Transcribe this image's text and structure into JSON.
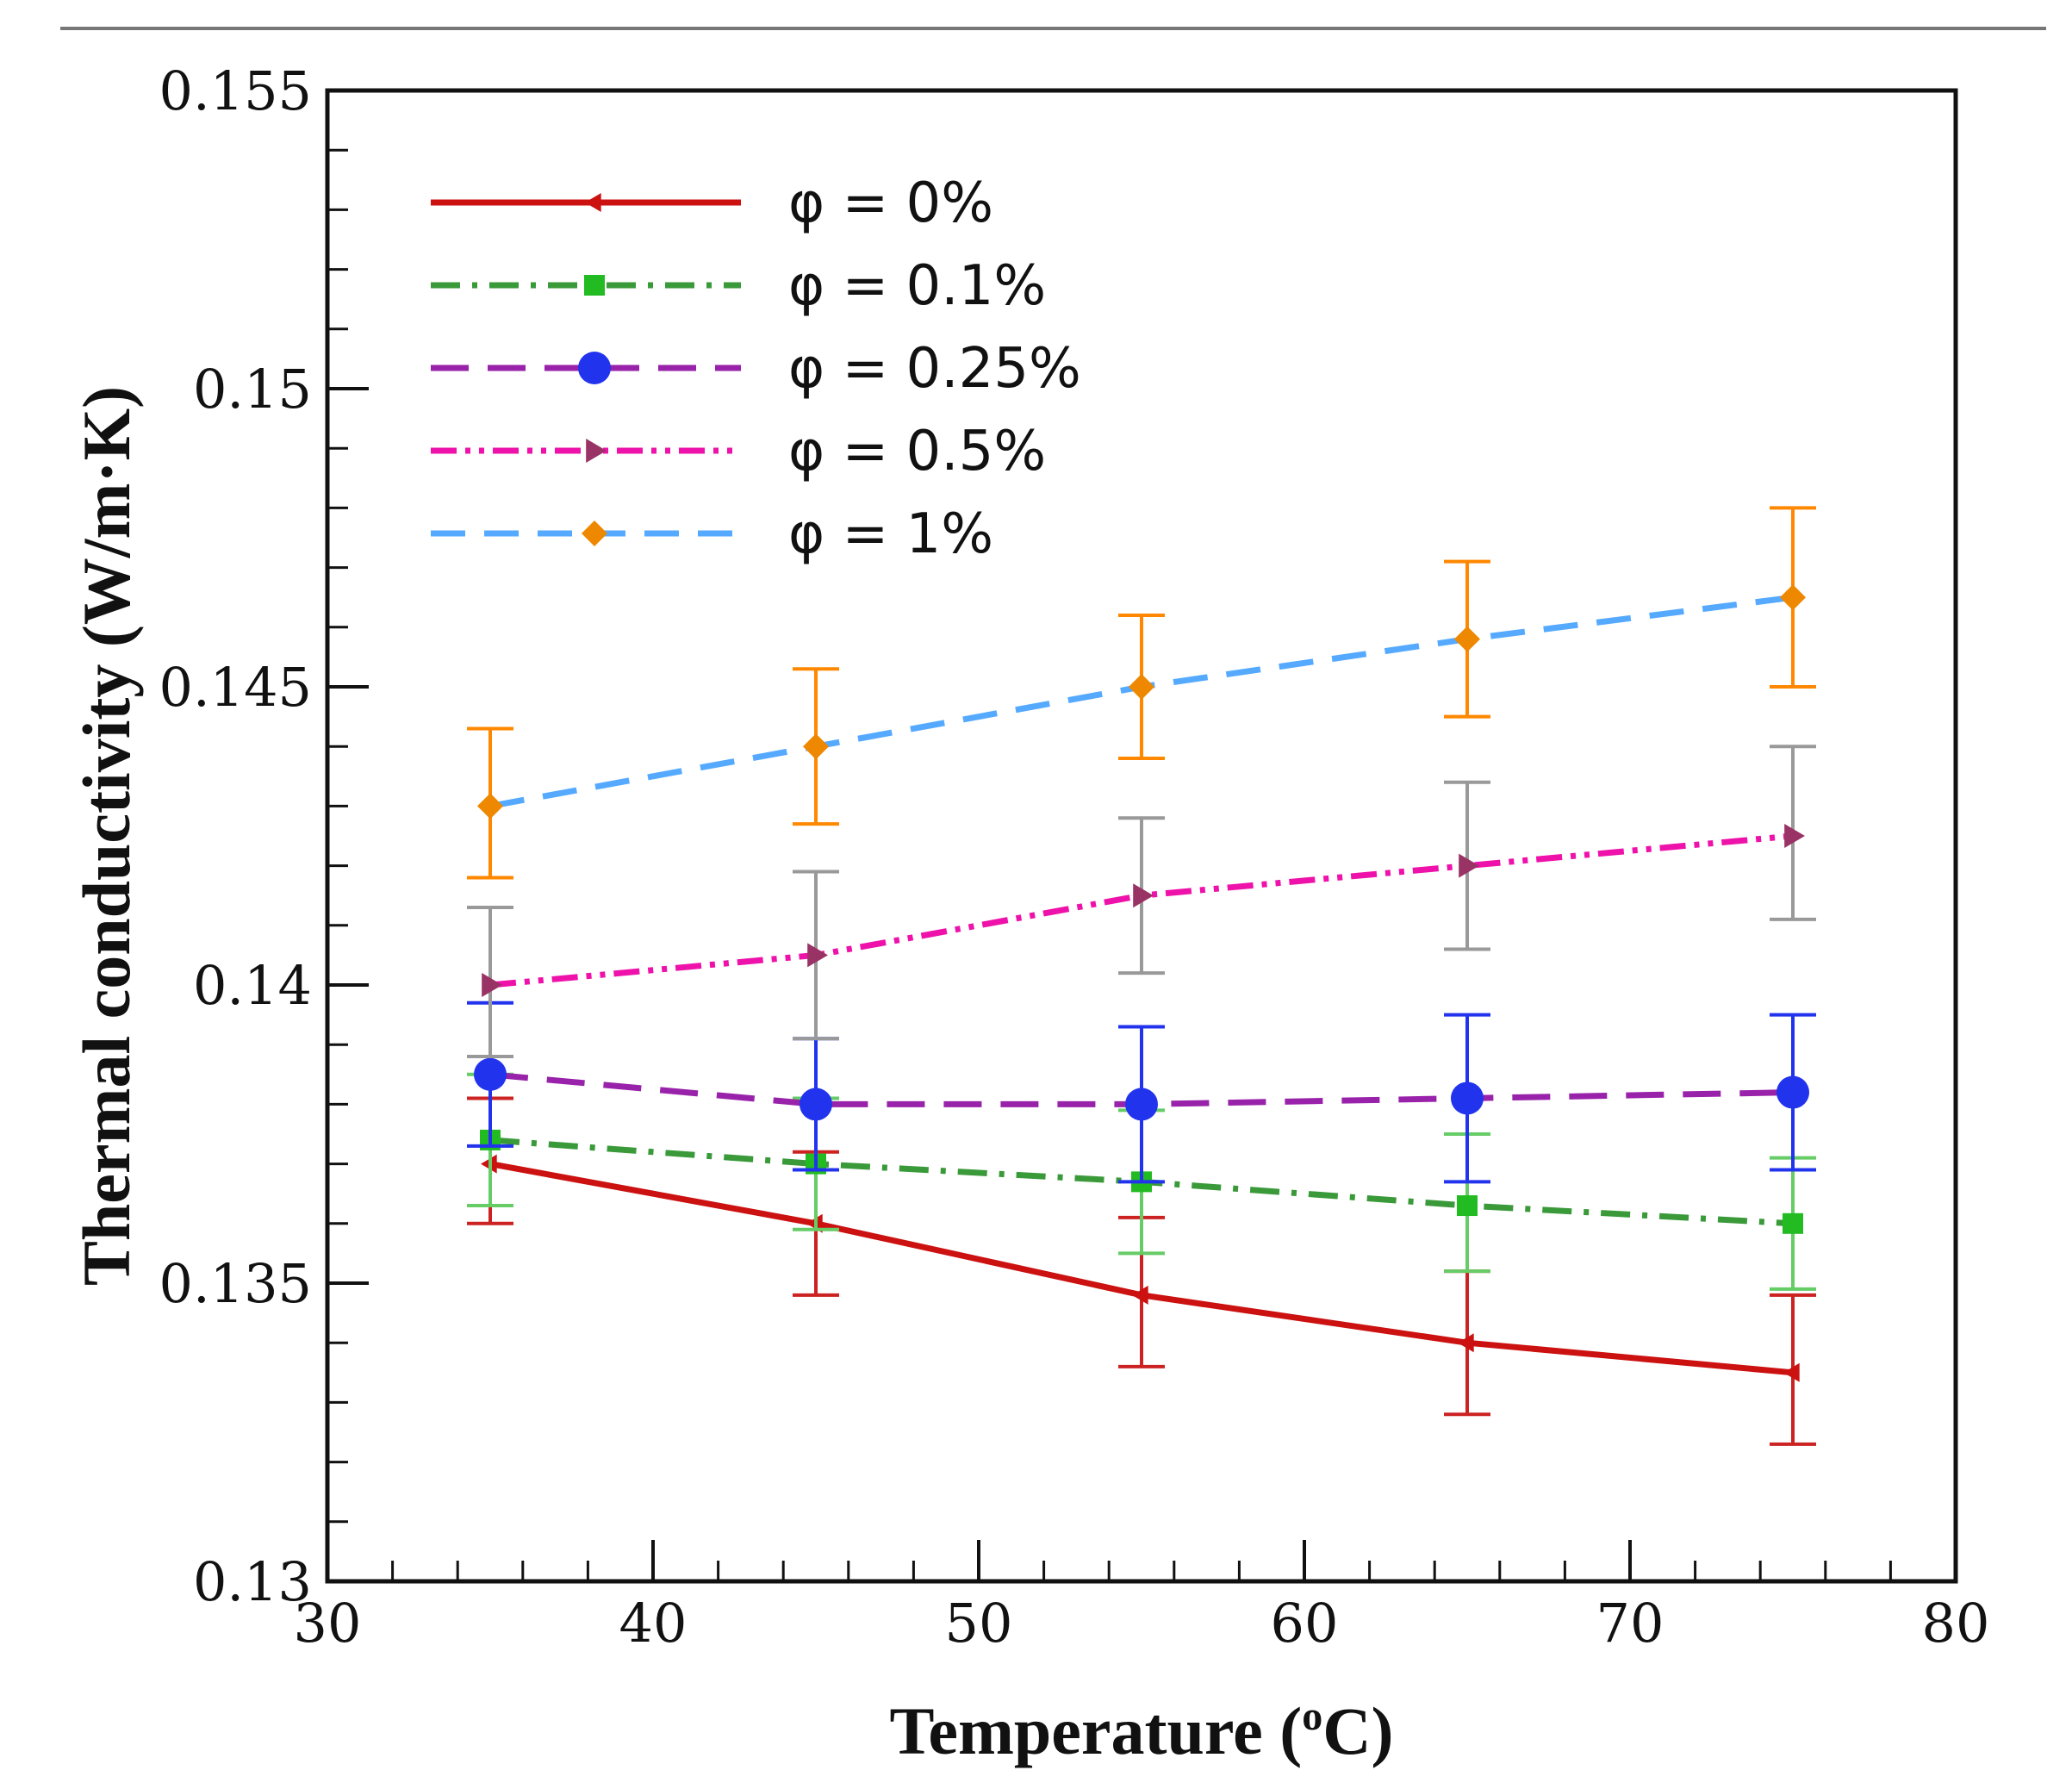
{
  "chart_data": {
    "type": "line",
    "title": "",
    "xlabel": "Temperature (",
    "xlabel_unit_sup": "o",
    "xlabel_unit_end": "C)",
    "ylabel": "Thermal conductivity (W/m·K)",
    "xlim": [
      30,
      80
    ],
    "ylim": [
      0.13,
      0.155
    ],
    "xticks": [
      30,
      40,
      50,
      60,
      70,
      80
    ],
    "xtick_labels": [
      "30",
      "40",
      "50",
      "60",
      "70",
      "80"
    ],
    "yticks": [
      0.13,
      0.135,
      0.14,
      0.145,
      0.15,
      0.155
    ],
    "ytick_labels": [
      "0.13",
      "0.135",
      "0.14",
      "0.145",
      "0.15",
      "0.155"
    ],
    "grid": false,
    "legend_position": "top-left",
    "x": [
      35,
      45,
      55,
      65,
      75
    ],
    "series": [
      {
        "name": "φ = 0%",
        "values": [
          0.137,
          0.136,
          0.1348,
          0.134,
          0.1335
        ],
        "err_low": [
          0.136,
          0.1348,
          0.1336,
          0.1328,
          0.1323
        ],
        "err_high": [
          0.1381,
          0.1372,
          0.1361,
          0.1352,
          0.1348
        ],
        "color": "#cc1111",
        "err_color": "#cc2222",
        "dash": "",
        "marker": "triangle-left",
        "marker_color": "#cc1111"
      },
      {
        "name": "φ = 0.1%",
        "values": [
          0.1374,
          0.137,
          0.1367,
          0.1363,
          0.136
        ],
        "err_low": [
          0.1363,
          0.1359,
          0.1355,
          0.1352,
          0.1349
        ],
        "err_high": [
          0.1385,
          0.1381,
          0.1379,
          0.1375,
          0.1371
        ],
        "color": "#3a9a3a",
        "err_color": "#66cc66",
        "dash": "34 14 6 14",
        "marker": "square",
        "marker_color": "#22bb22"
      },
      {
        "name": "φ = 0.25%",
        "values": [
          0.1385,
          0.138,
          0.138,
          0.1381,
          0.1382
        ],
        "err_low": [
          0.1373,
          0.1369,
          0.1367,
          0.1367,
          0.1369
        ],
        "err_high": [
          0.1397,
          0.1391,
          0.1393,
          0.1395,
          0.1395
        ],
        "color": "#9922aa",
        "err_color": "#2233ee",
        "dash": "44 22",
        "marker": "circle",
        "marker_color": "#2233ee"
      },
      {
        "name": "φ = 0.5%",
        "values": [
          0.14,
          0.1405,
          0.1415,
          0.142,
          0.1425
        ],
        "err_low": [
          0.1388,
          0.1391,
          0.1402,
          0.1406,
          0.1411
        ],
        "err_high": [
          0.1413,
          0.1419,
          0.1428,
          0.1434,
          0.144
        ],
        "color": "#ee11aa",
        "err_color": "#999999",
        "dash": "30 10 6 10 6 10",
        "marker": "triangle-right",
        "marker_color": "#993366"
      },
      {
        "name": "φ = 1%",
        "values": [
          0.143,
          0.144,
          0.145,
          0.1458,
          0.1465
        ],
        "err_low": [
          0.1418,
          0.1427,
          0.1438,
          0.1445,
          0.145
        ],
        "err_high": [
          0.1443,
          0.1453,
          0.1462,
          0.1471,
          0.148
        ],
        "color": "#55aaff",
        "err_color": "#ff8800",
        "dash": "40 22",
        "marker": "diamond",
        "marker_color": "#ee8800"
      }
    ]
  }
}
